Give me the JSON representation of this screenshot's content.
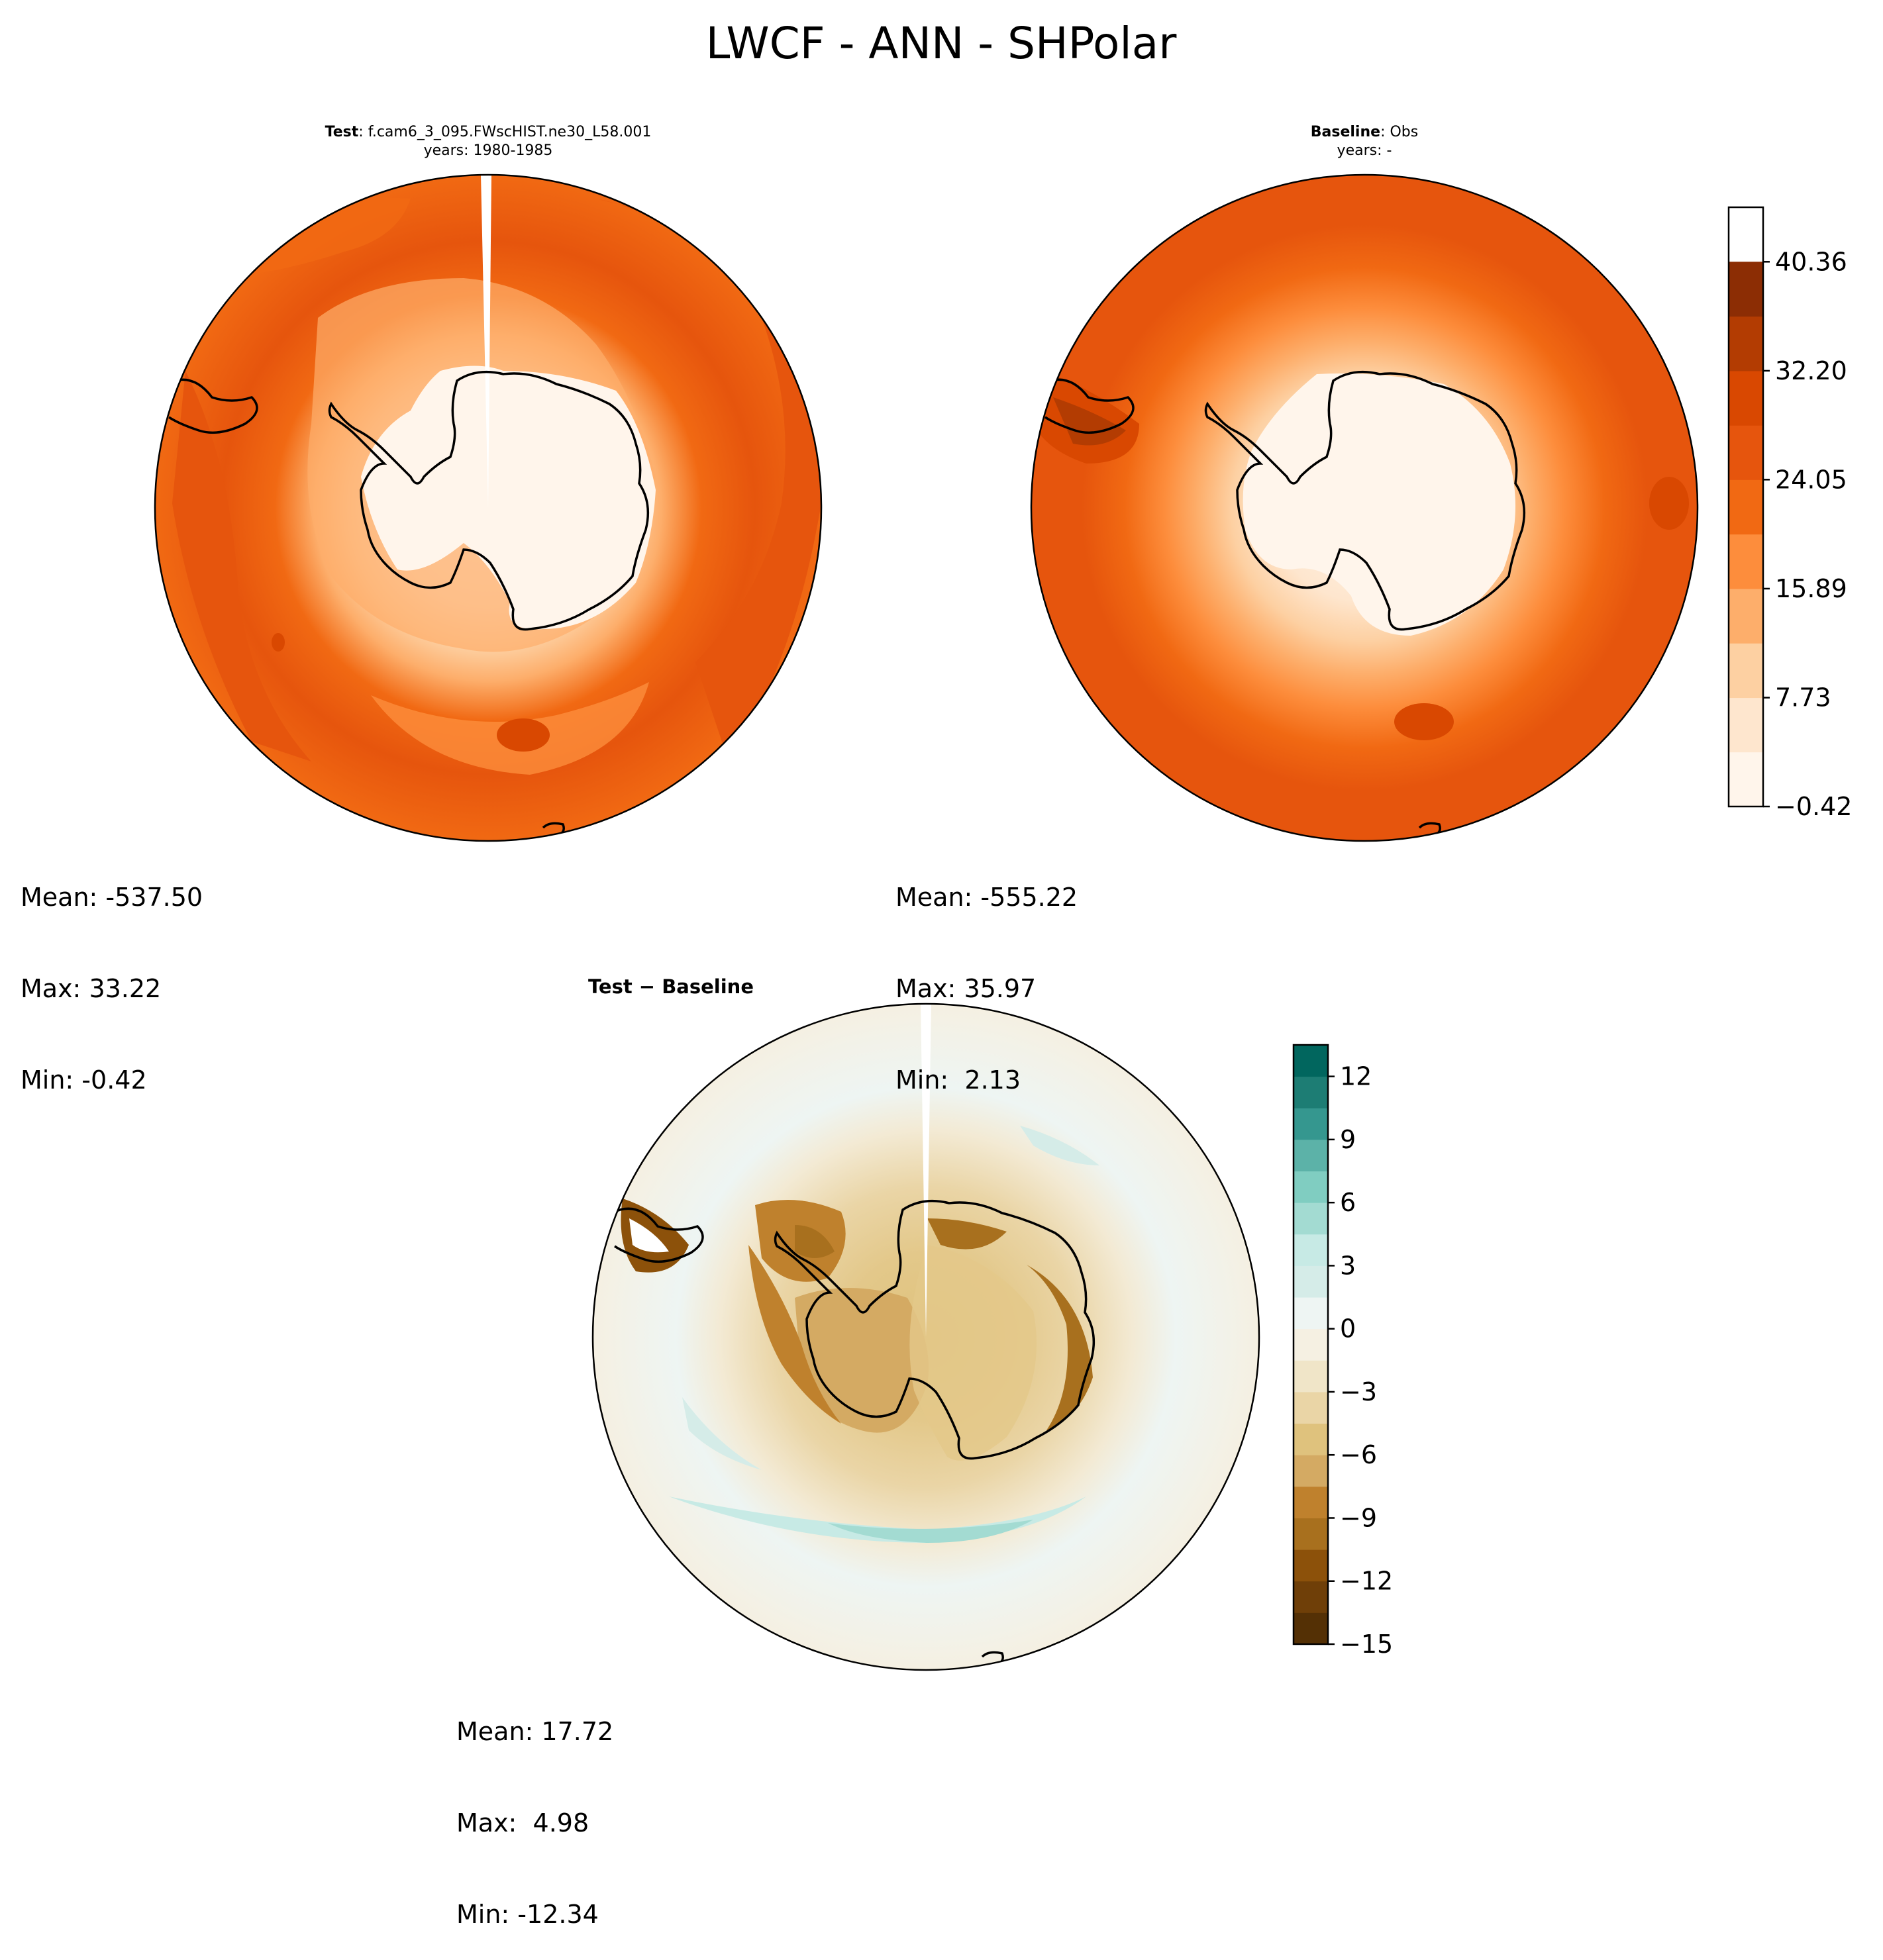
{
  "title": "LWCF - ANN - SHPolar",
  "panels": {
    "test": {
      "title_bold": "Test",
      "title_rest": ": f.cam6_3_095.FWscHIST.ne30_L58.001",
      "years": "years: 1980-1985",
      "mean": "Mean: -537.50",
      "max": "Max: 33.22",
      "min": "Min: -0.42"
    },
    "baseline": {
      "title_bold": "Baseline",
      "title_rest": ": Obs",
      "years": "years: -",
      "mean": "Mean: -555.22",
      "max": "Max: 35.97",
      "min": "Min:  2.13"
    },
    "diff": {
      "title": "Test − Baseline",
      "mean": "Mean: 17.72",
      "max": "Max:  4.98",
      "min": "Min: -12.34"
    }
  },
  "chart_data": [
    {
      "type": "heatmap",
      "name_ref": "test",
      "projection": "south-polar-stereographic",
      "colormap": "Oranges",
      "contour_levels": [
        -0.42,
        3.66,
        7.73,
        11.81,
        15.89,
        19.97,
        24.05,
        28.12,
        32.2,
        36.28,
        40.36,
        44.44
      ],
      "colorbar_ticks": [
        "−0.42",
        "7.73",
        "15.89",
        "24.05",
        "32.20",
        "40.36"
      ],
      "colors": [
        "#fff5eb",
        "#fee6ce",
        "#fdd0a2",
        "#fdae6b",
        "#fd8d3c",
        "#f16913",
        "#e6550d",
        "#d94801",
        "#b33c02",
        "#8c2d04"
      ],
      "summary": {
        "mean": -537.5,
        "max": 33.22,
        "min": -0.42
      }
    },
    {
      "type": "heatmap",
      "name_ref": "baseline",
      "projection": "south-polar-stereographic",
      "colormap": "Oranges",
      "summary": {
        "mean": -555.22,
        "max": 35.97,
        "min": 2.13
      }
    },
    {
      "type": "heatmap",
      "name_ref": "diff",
      "projection": "south-polar-stereographic",
      "colormap": "BrBG",
      "contour_levels": [
        -15,
        -13.5,
        -12,
        -10.5,
        -9,
        -7.5,
        -6,
        -4.5,
        -3,
        -1.5,
        0,
        1.5,
        3,
        4.5,
        6,
        7.5,
        9,
        10.5,
        12,
        13.5
      ],
      "colorbar_ticks": [
        "−15",
        "−12",
        "−9",
        "−6",
        "−3",
        "0",
        "3",
        "6",
        "9",
        "12"
      ],
      "colors": [
        "#543005",
        "#6f3f08",
        "#8c510a",
        "#a8701e",
        "#bf812d",
        "#d4aa63",
        "#dfc27d",
        "#ead5a6",
        "#f0e5c8",
        "#f5f0e2",
        "#eef5f3",
        "#d5ece8",
        "#c7eae5",
        "#a3dbd2",
        "#80cdc1",
        "#5cb2a8",
        "#35978f",
        "#1d7d74",
        "#01665e",
        "#003c30"
      ],
      "summary": {
        "mean": 17.72,
        "max": 4.98,
        "min": -12.34
      }
    }
  ],
  "colors": {
    "ocean_test": "#e6550d",
    "land_light": "#fff5eb",
    "diff_bg": "#f5f0e2"
  }
}
